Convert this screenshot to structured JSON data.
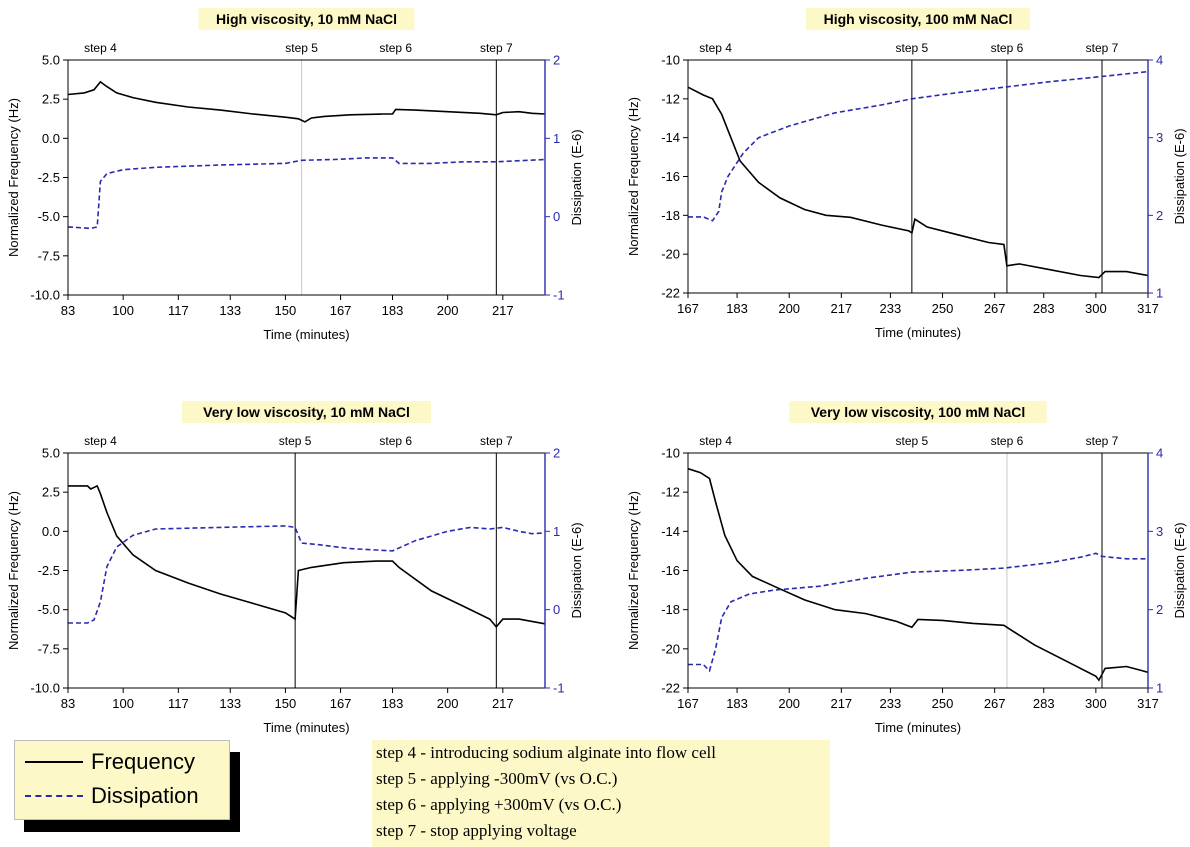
{
  "chart_data": [
    {
      "type": "line",
      "title": "High viscosity, 10 mM NaCl",
      "xlabel": "Time (minutes)",
      "ylabel": "Normalized Frequency (Hz)",
      "y2label": "Dissipation (E-6)",
      "xlim": [
        83,
        230
      ],
      "ylim": [
        -10,
        5
      ],
      "y2lim": [
        -1,
        2
      ],
      "xticks": [
        "83",
        "100",
        "117",
        "133",
        "150",
        "167",
        "183",
        "200",
        "217"
      ],
      "yticks": [
        "5.0",
        "2.5",
        "0.0",
        "-2.5",
        "-5.0",
        "-7.5",
        "-10.0"
      ],
      "y2ticks": [
        "2",
        "1",
        "0",
        "-1"
      ],
      "steps": [
        {
          "label": "step 4",
          "x": 93,
          "line": false
        },
        {
          "label": "step 5",
          "x": 155,
          "line": true,
          "color": "#c8c8c8"
        },
        {
          "label": "step 6",
          "x": 184,
          "line": false
        },
        {
          "label": "step 7",
          "x": 215,
          "line": true,
          "color": "#000000"
        }
      ],
      "series": [
        {
          "name": "Frequency",
          "axis": "left",
          "style": "solid",
          "color": "#000000",
          "points": [
            [
              83,
              2.8
            ],
            [
              88,
              2.9
            ],
            [
              91,
              3.1
            ],
            [
              93,
              3.6
            ],
            [
              95,
              3.3
            ],
            [
              98,
              2.9
            ],
            [
              103,
              2.6
            ],
            [
              110,
              2.3
            ],
            [
              120,
              2.0
            ],
            [
              130,
              1.8
            ],
            [
              140,
              1.55
            ],
            [
              150,
              1.35
            ],
            [
              154,
              1.25
            ],
            [
              156,
              1.05
            ],
            [
              158,
              1.3
            ],
            [
              162,
              1.4
            ],
            [
              170,
              1.5
            ],
            [
              180,
              1.55
            ],
            [
              183,
              1.55
            ],
            [
              184,
              1.85
            ],
            [
              190,
              1.8
            ],
            [
              200,
              1.7
            ],
            [
              210,
              1.6
            ],
            [
              215,
              1.5
            ],
            [
              217,
              1.65
            ],
            [
              222,
              1.7
            ],
            [
              226,
              1.6
            ],
            [
              230,
              1.55
            ]
          ]
        },
        {
          "name": "Dissipation",
          "axis": "right",
          "style": "dashed",
          "color": "#2a2ab0",
          "points": [
            [
              83,
              -0.13
            ],
            [
              90,
              -0.15
            ],
            [
              92,
              -0.13
            ],
            [
              93,
              0.45
            ],
            [
              95,
              0.55
            ],
            [
              100,
              0.6
            ],
            [
              110,
              0.63
            ],
            [
              130,
              0.66
            ],
            [
              150,
              0.68
            ],
            [
              155,
              0.72
            ],
            [
              165,
              0.73
            ],
            [
              175,
              0.75
            ],
            [
              183,
              0.75
            ],
            [
              185,
              0.68
            ],
            [
              195,
              0.68
            ],
            [
              205,
              0.7
            ],
            [
              215,
              0.7
            ],
            [
              225,
              0.72
            ],
            [
              230,
              0.73
            ]
          ]
        }
      ]
    },
    {
      "type": "line",
      "title": "High viscosity, 100 mM NaCl",
      "xlabel": "Time (minutes)",
      "ylabel": "Normalized Frequency (Hz)",
      "y2label": "Dissipation (E-6)",
      "xlim": [
        167,
        317
      ],
      "ylim": [
        -22,
        -10
      ],
      "y2lim": [
        1,
        4
      ],
      "xticks": [
        "167",
        "183",
        "200",
        "217",
        "233",
        "250",
        "267",
        "283",
        "300",
        "317"
      ],
      "yticks": [
        "-10",
        "-12",
        "-14",
        "-16",
        "-18",
        "-20",
        "-22"
      ],
      "y2ticks": [
        "4",
        "3",
        "2",
        "1"
      ],
      "steps": [
        {
          "label": "step 4",
          "x": 176,
          "line": false
        },
        {
          "label": "step 5",
          "x": 240,
          "line": true,
          "color": "#000000"
        },
        {
          "label": "step 6",
          "x": 271,
          "line": true,
          "color": "#000000"
        },
        {
          "label": "step 7",
          "x": 302,
          "line": true,
          "color": "#000000"
        }
      ],
      "series": [
        {
          "name": "Frequency",
          "axis": "left",
          "style": "solid",
          "color": "#000000",
          "points": [
            [
              167,
              -11.4
            ],
            [
              172,
              -11.8
            ],
            [
              175,
              -12.0
            ],
            [
              178,
              -12.8
            ],
            [
              181,
              -14.0
            ],
            [
              184,
              -15.2
            ],
            [
              190,
              -16.3
            ],
            [
              197,
              -17.1
            ],
            [
              205,
              -17.7
            ],
            [
              212,
              -18.0
            ],
            [
              220,
              -18.1
            ],
            [
              230,
              -18.5
            ],
            [
              239,
              -18.8
            ],
            [
              240,
              -18.9
            ],
            [
              241,
              -18.2
            ],
            [
              245,
              -18.6
            ],
            [
              255,
              -19.0
            ],
            [
              265,
              -19.4
            ],
            [
              270,
              -19.5
            ],
            [
              271,
              -20.6
            ],
            [
              275,
              -20.5
            ],
            [
              285,
              -20.8
            ],
            [
              295,
              -21.1
            ],
            [
              301,
              -21.2
            ],
            [
              303,
              -20.9
            ],
            [
              310,
              -20.9
            ],
            [
              317,
              -21.1
            ]
          ]
        },
        {
          "name": "Dissipation",
          "axis": "right",
          "style": "dashed",
          "color": "#2a2ab0",
          "points": [
            [
              167,
              1.98
            ],
            [
              172,
              1.98
            ],
            [
              175,
              1.93
            ],
            [
              177,
              2.05
            ],
            [
              178,
              2.3
            ],
            [
              180,
              2.5
            ],
            [
              185,
              2.8
            ],
            [
              190,
              3.0
            ],
            [
              200,
              3.15
            ],
            [
              215,
              3.32
            ],
            [
              230,
              3.42
            ],
            [
              240,
              3.5
            ],
            [
              255,
              3.58
            ],
            [
              270,
              3.65
            ],
            [
              285,
              3.72
            ],
            [
              300,
              3.78
            ],
            [
              317,
              3.85
            ]
          ]
        }
      ]
    },
    {
      "type": "line",
      "title": "Very low viscosity, 10 mM NaCl",
      "xlabel": "Time (minutes)",
      "ylabel": "Normalized Frequency (Hz)",
      "y2label": "Dissipation (E-6)",
      "xlim": [
        83,
        230
      ],
      "ylim": [
        -10,
        5
      ],
      "y2lim": [
        -1,
        2
      ],
      "xticks": [
        "83",
        "100",
        "117",
        "133",
        "150",
        "167",
        "183",
        "200",
        "217"
      ],
      "yticks": [
        "5.0",
        "2.5",
        "0.0",
        "-2.5",
        "-5.0",
        "-7.5",
        "-10.0"
      ],
      "y2ticks": [
        "2",
        "1",
        "0",
        "-1"
      ],
      "steps": [
        {
          "label": "step 4",
          "x": 93,
          "line": false
        },
        {
          "label": "step 5",
          "x": 153,
          "line": true,
          "color": "#000000"
        },
        {
          "label": "step 6",
          "x": 184,
          "line": false
        },
        {
          "label": "step 7",
          "x": 215,
          "line": true,
          "color": "#000000"
        }
      ],
      "series": [
        {
          "name": "Frequency",
          "axis": "left",
          "style": "solid",
          "color": "#000000",
          "points": [
            [
              83,
              2.9
            ],
            [
              89,
              2.9
            ],
            [
              90,
              2.7
            ],
            [
              92,
              2.9
            ],
            [
              93,
              2.4
            ],
            [
              95,
              1.2
            ],
            [
              98,
              -0.3
            ],
            [
              103,
              -1.5
            ],
            [
              110,
              -2.5
            ],
            [
              120,
              -3.3
            ],
            [
              130,
              -4.0
            ],
            [
              140,
              -4.6
            ],
            [
              150,
              -5.2
            ],
            [
              153,
              -5.6
            ],
            [
              154,
              -2.5
            ],
            [
              158,
              -2.3
            ],
            [
              168,
              -2.0
            ],
            [
              178,
              -1.9
            ],
            [
              183,
              -1.9
            ],
            [
              185,
              -2.3
            ],
            [
              195,
              -3.8
            ],
            [
              205,
              -4.8
            ],
            [
              213,
              -5.6
            ],
            [
              215,
              -6.1
            ],
            [
              217,
              -5.6
            ],
            [
              222,
              -5.6
            ],
            [
              230,
              -5.9
            ]
          ]
        },
        {
          "name": "Dissipation",
          "axis": "right",
          "style": "dashed",
          "color": "#2a2ab0",
          "points": [
            [
              83,
              -0.17
            ],
            [
              89,
              -0.17
            ],
            [
              91,
              -0.13
            ],
            [
              93,
              0.1
            ],
            [
              95,
              0.55
            ],
            [
              98,
              0.8
            ],
            [
              103,
              0.95
            ],
            [
              110,
              1.03
            ],
            [
              130,
              1.05
            ],
            [
              150,
              1.07
            ],
            [
              153,
              1.05
            ],
            [
              155,
              0.85
            ],
            [
              160,
              0.83
            ],
            [
              170,
              0.78
            ],
            [
              183,
              0.75
            ],
            [
              190,
              0.88
            ],
            [
              200,
              1.0
            ],
            [
              207,
              1.05
            ],
            [
              213,
              1.03
            ],
            [
              217,
              1.05
            ],
            [
              222,
              1.0
            ],
            [
              226,
              0.97
            ],
            [
              230,
              0.98
            ]
          ]
        }
      ]
    },
    {
      "type": "line",
      "title": "Very low viscosity, 100 mM NaCl",
      "xlabel": "Time (minutes)",
      "ylabel": "Normalized Frequency (Hz)",
      "y2label": "Dissipation (E-6)",
      "xlim": [
        167,
        317
      ],
      "ylim": [
        -22,
        -10
      ],
      "y2lim": [
        1,
        4
      ],
      "xticks": [
        "167",
        "183",
        "200",
        "217",
        "233",
        "250",
        "267",
        "283",
        "300",
        "317"
      ],
      "yticks": [
        "-10",
        "-12",
        "-14",
        "-16",
        "-18",
        "-20",
        "-22"
      ],
      "y2ticks": [
        "4",
        "3",
        "2",
        "1"
      ],
      "steps": [
        {
          "label": "step 4",
          "x": 176,
          "line": false
        },
        {
          "label": "step 5",
          "x": 240,
          "line": false
        },
        {
          "label": "step 6",
          "x": 271,
          "line": true,
          "color": "#c8c8c8"
        },
        {
          "label": "step 7",
          "x": 302,
          "line": true,
          "color": "#000000"
        }
      ],
      "series": [
        {
          "name": "Frequency",
          "axis": "left",
          "style": "solid",
          "color": "#000000",
          "points": [
            [
              167,
              -10.8
            ],
            [
              171,
              -11.0
            ],
            [
              174,
              -11.3
            ],
            [
              176,
              -12.5
            ],
            [
              179,
              -14.2
            ],
            [
              183,
              -15.5
            ],
            [
              188,
              -16.3
            ],
            [
              195,
              -16.8
            ],
            [
              205,
              -17.5
            ],
            [
              215,
              -18.0
            ],
            [
              225,
              -18.2
            ],
            [
              235,
              -18.6
            ],
            [
              240,
              -18.9
            ],
            [
              242,
              -18.5
            ],
            [
              250,
              -18.55
            ],
            [
              260,
              -18.7
            ],
            [
              270,
              -18.8
            ],
            [
              272,
              -19.0
            ],
            [
              280,
              -19.8
            ],
            [
              290,
              -20.6
            ],
            [
              300,
              -21.4
            ],
            [
              301,
              -21.6
            ],
            [
              303,
              -21.0
            ],
            [
              310,
              -20.9
            ],
            [
              317,
              -21.2
            ]
          ]
        },
        {
          "name": "Dissipation",
          "axis": "right",
          "style": "dashed",
          "color": "#2a2ab0",
          "points": [
            [
              167,
              1.3
            ],
            [
              172,
              1.3
            ],
            [
              174,
              1.22
            ],
            [
              176,
              1.5
            ],
            [
              178,
              1.9
            ],
            [
              181,
              2.1
            ],
            [
              187,
              2.2
            ],
            [
              195,
              2.25
            ],
            [
              210,
              2.3
            ],
            [
              225,
              2.4
            ],
            [
              240,
              2.48
            ],
            [
              255,
              2.5
            ],
            [
              270,
              2.53
            ],
            [
              285,
              2.6
            ],
            [
              295,
              2.67
            ],
            [
              300,
              2.72
            ],
            [
              302,
              2.68
            ],
            [
              310,
              2.65
            ],
            [
              317,
              2.65
            ]
          ]
        }
      ]
    }
  ],
  "legend": {
    "frequency_label": "Frequency",
    "dissipation_label": "Dissipation"
  },
  "step_notes": [
    "step 4 - introducing sodium alginate into flow cell",
    "step 5 - applying -300mV (vs O.C.)",
    "step 6 - applying +300mV (vs O.C.)",
    "step 7 - stop applying voltage"
  ]
}
